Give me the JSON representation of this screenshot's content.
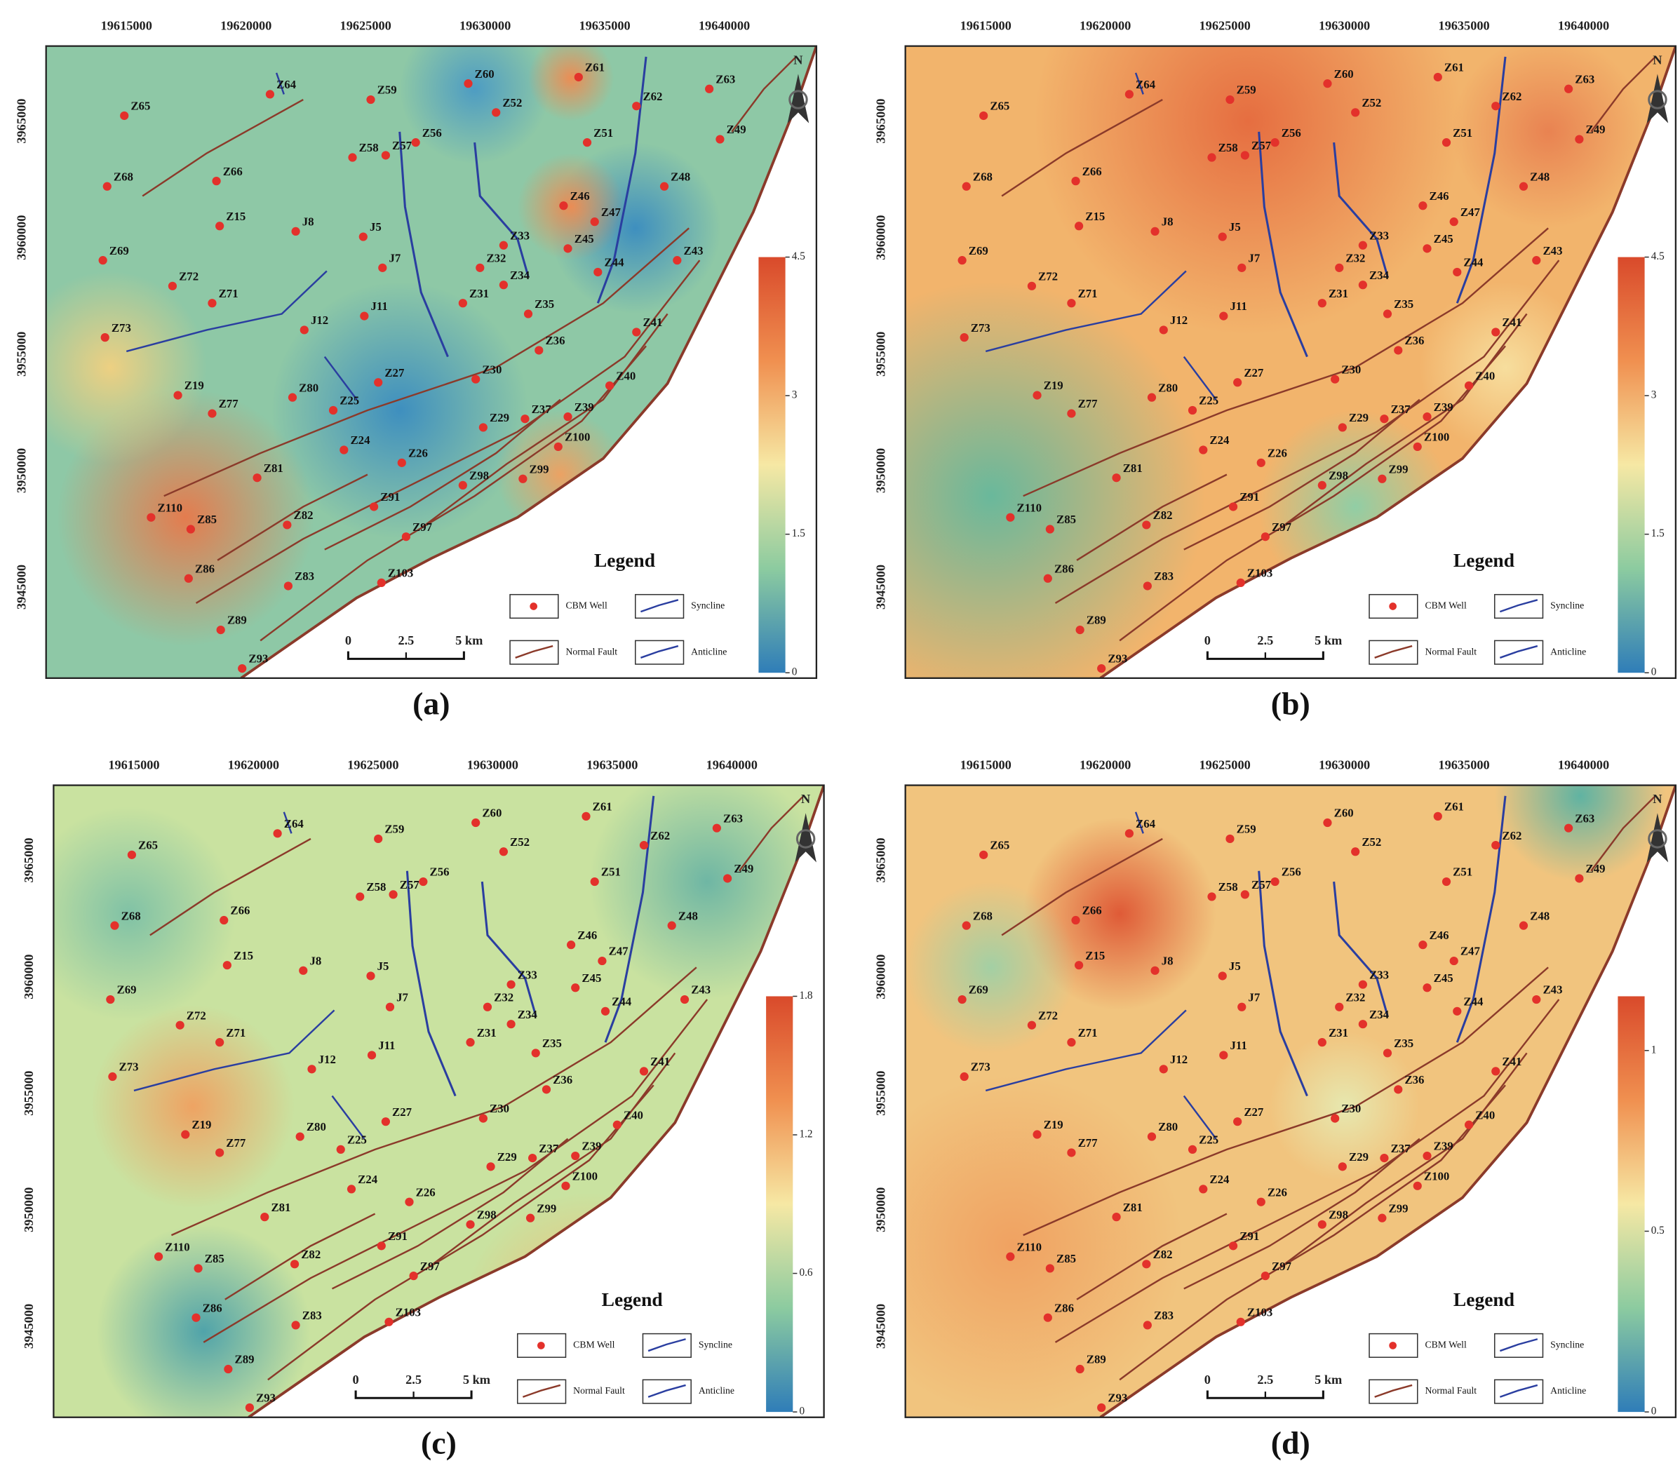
{
  "panels": [
    {
      "label": "(a)",
      "colorbar_range": [
        0,
        4.5
      ],
      "colorbar_ticks": [
        4.5,
        3,
        1.5,
        0
      ]
    },
    {
      "label": "(b)",
      "colorbar_range": [
        0,
        4.5
      ],
      "colorbar_ticks": [
        4.5,
        3,
        1.5,
        0
      ]
    },
    {
      "label": "(c)",
      "colorbar_range": [
        0,
        1.8
      ],
      "colorbar_ticks": [
        1.8,
        1.2,
        0.6,
        0
      ]
    },
    {
      "label": "(d)",
      "colorbar_range": [
        0,
        1.15
      ],
      "colorbar_ticks": [
        1,
        0.5,
        0
      ]
    }
  ],
  "x_ticks": [
    19615000,
    19620000,
    19625000,
    19630000,
    19635000,
    19640000
  ],
  "y_ticks": [
    3965000,
    3960000,
    3955000,
    3950000,
    3945000
  ],
  "wells": [
    "Z64",
    "Z65",
    "Z59",
    "Z60",
    "Z61",
    "Z52",
    "Z62",
    "Z63",
    "Z49",
    "Z58",
    "Z57",
    "Z56",
    "Z51",
    "Z68",
    "Z66",
    "Z48",
    "Z46",
    "Z47",
    "Z15",
    "J8",
    "J5",
    "Z33",
    "Z45",
    "Z69",
    "J7",
    "Z32",
    "Z44",
    "Z43",
    "Z72",
    "Z34",
    "Z71",
    "Z31",
    "J11",
    "Z35",
    "J12",
    "Z41",
    "Z73",
    "Z36",
    "Z27",
    "Z30",
    "Z40",
    "Z19",
    "Z80",
    "Z77",
    "Z25",
    "Z29",
    "Z37",
    "Z39",
    "Z24",
    "Z100",
    "Z26",
    "Z81",
    "Z98",
    "Z99",
    "Z91",
    "Z110",
    "Z85",
    "Z82",
    "Z97",
    "Z86",
    "Z103",
    "Z83",
    "Z89",
    "Z93"
  ],
  "legend": {
    "title": "Legend",
    "items": [
      "CBM Well",
      "Syncline",
      "Normal Fault",
      "Anticline"
    ]
  },
  "scale_bar": [
    "0",
    "2.5",
    "5 km"
  ],
  "north": "N"
}
